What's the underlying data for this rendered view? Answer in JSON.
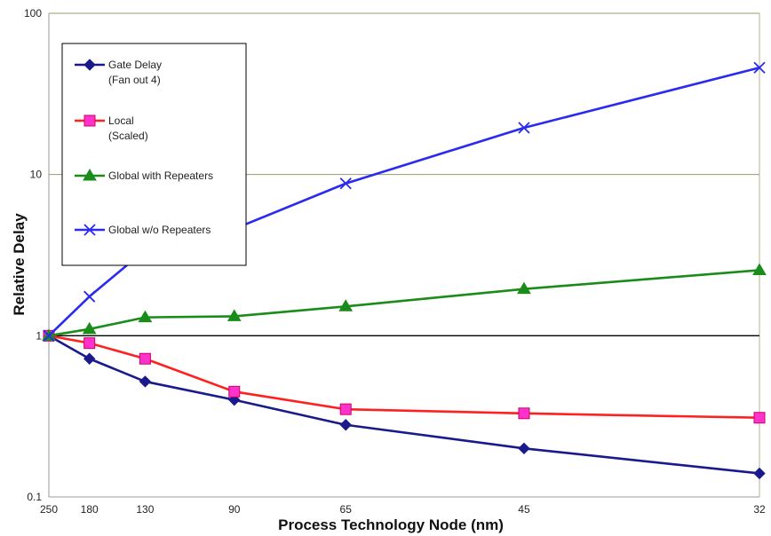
{
  "chart_data": {
    "type": "line",
    "xlabel": "Process Technology Node (nm)",
    "ylabel": "Relative Delay",
    "categories": [
      "250",
      "180",
      "130",
      "90",
      "65",
      "45",
      "32"
    ],
    "x_values": [
      250,
      180,
      130,
      90,
      65,
      45,
      32
    ],
    "x_scale": "reciprocal",
    "y_scale": "log",
    "ylim": [
      0.1,
      100
    ],
    "y_ticks": [
      "100",
      "10",
      "1",
      "0.1"
    ],
    "y_tick_values": [
      100,
      10,
      1,
      0.1
    ],
    "grid": "horizontal",
    "legend_position": "top-left",
    "series": [
      {
        "name": "Gate Delay",
        "name_line2": "(Fan out 4)",
        "marker": "diamond",
        "color": "#1a1a8c",
        "values": [
          1.0,
          0.72,
          0.52,
          0.4,
          0.28,
          0.2,
          0.14
        ]
      },
      {
        "name": "Local",
        "name_line2": "(Scaled)",
        "marker": "square",
        "color": "#ff2020",
        "marker_fill": "#ff33cc",
        "values": [
          1.0,
          0.9,
          0.72,
          0.45,
          0.35,
          0.33,
          0.31
        ]
      },
      {
        "name": "Global with Repeaters",
        "name_line2": "",
        "marker": "triangle",
        "color": "#1a8c1a",
        "values": [
          1.0,
          1.1,
          1.3,
          1.32,
          1.52,
          1.95,
          2.55
        ]
      },
      {
        "name": "Global w/o Repeaters",
        "name_line2": "",
        "marker": "x",
        "color": "#2a2af0",
        "values": [
          1.0,
          1.75,
          3.4,
          4.6,
          8.8,
          19.5,
          46.0
        ]
      }
    ]
  }
}
